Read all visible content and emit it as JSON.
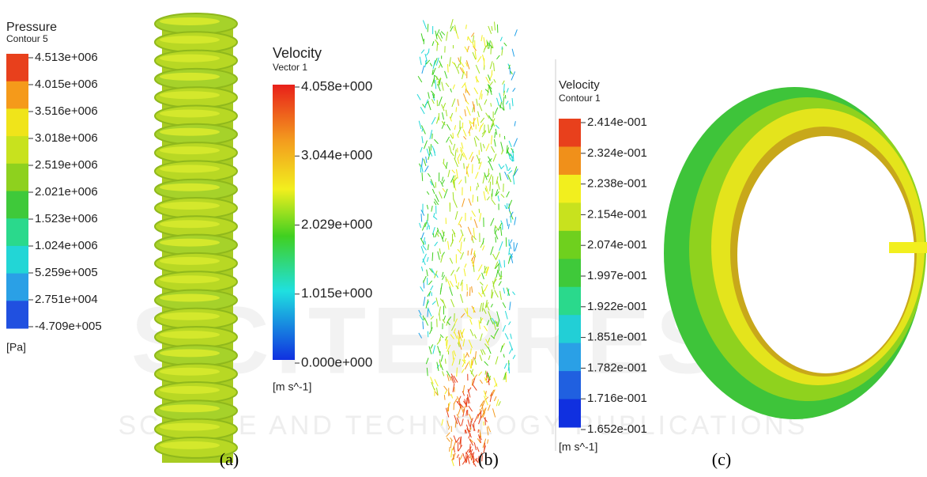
{
  "panels": [
    {
      "legend": {
        "title": "Pressure",
        "subtitle": "Contour 5",
        "labels": [
          "4.513e+006",
          "4.015e+006",
          "3.516e+006",
          "3.018e+006",
          "2.519e+006",
          "2.021e+006",
          "1.523e+006",
          "1.024e+006",
          "5.259e+005",
          "2.751e+004",
          "-4.709e+005"
        ],
        "unit": "[Pa]"
      },
      "caption": "(a)"
    },
    {
      "legend": {
        "title": "Velocity",
        "subtitle": "Vector 1",
        "labels": [
          "4.058e+000",
          "3.044e+000",
          "2.029e+000",
          "1.015e+000",
          "0.000e+000"
        ],
        "unit": "[m s^-1]"
      },
      "caption": "(b)"
    },
    {
      "legend": {
        "title": "Velocity",
        "subtitle": "Contour 1",
        "labels": [
          "2.414e-001",
          "2.324e-001",
          "2.238e-001",
          "2.154e-001",
          "2.074e-001",
          "1.997e-001",
          "1.922e-001",
          "1.851e-001",
          "1.782e-001",
          "1.716e-001",
          "1.652e-001"
        ],
        "unit": "[m s^-1]"
      },
      "caption": "(c)"
    }
  ],
  "watermark": {
    "title": "SCITEPRESS",
    "subtitle": "SCIENCE AND TECHNOLOGY PUBLICATIONS"
  }
}
